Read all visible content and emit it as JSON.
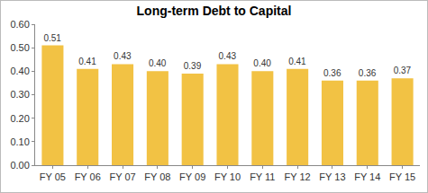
{
  "chart_data": {
    "type": "bar",
    "title": "Long-term Debt to Capital",
    "categories": [
      "FY 05",
      "FY 06",
      "FY 07",
      "FY 08",
      "FY 09",
      "FY 10",
      "FY 11",
      "FY 12",
      "FY 13",
      "FY 14",
      "FY 15"
    ],
    "values": [
      0.51,
      0.41,
      0.43,
      0.4,
      0.39,
      0.43,
      0.4,
      0.41,
      0.36,
      0.36,
      0.37
    ],
    "value_labels": [
      "0.51",
      "0.41",
      "0.43",
      "0.40",
      "0.39",
      "0.43",
      "0.40",
      "0.41",
      "0.36",
      "0.36",
      "0.37"
    ],
    "data_labels": true,
    "color": "#f2c244",
    "ylim": [
      0,
      0.6
    ],
    "yticks": [
      {
        "value": 0,
        "label": "0.00"
      },
      {
        "value": 0.1,
        "label": "0.10"
      },
      {
        "value": 0.2,
        "label": "0.20"
      },
      {
        "value": 0.3,
        "label": "0.30"
      },
      {
        "value": 0.4,
        "label": "0.40"
      },
      {
        "value": 0.5,
        "label": "0.50"
      },
      {
        "value": 0.6,
        "label": "0.60"
      }
    ],
    "grid": false
  }
}
